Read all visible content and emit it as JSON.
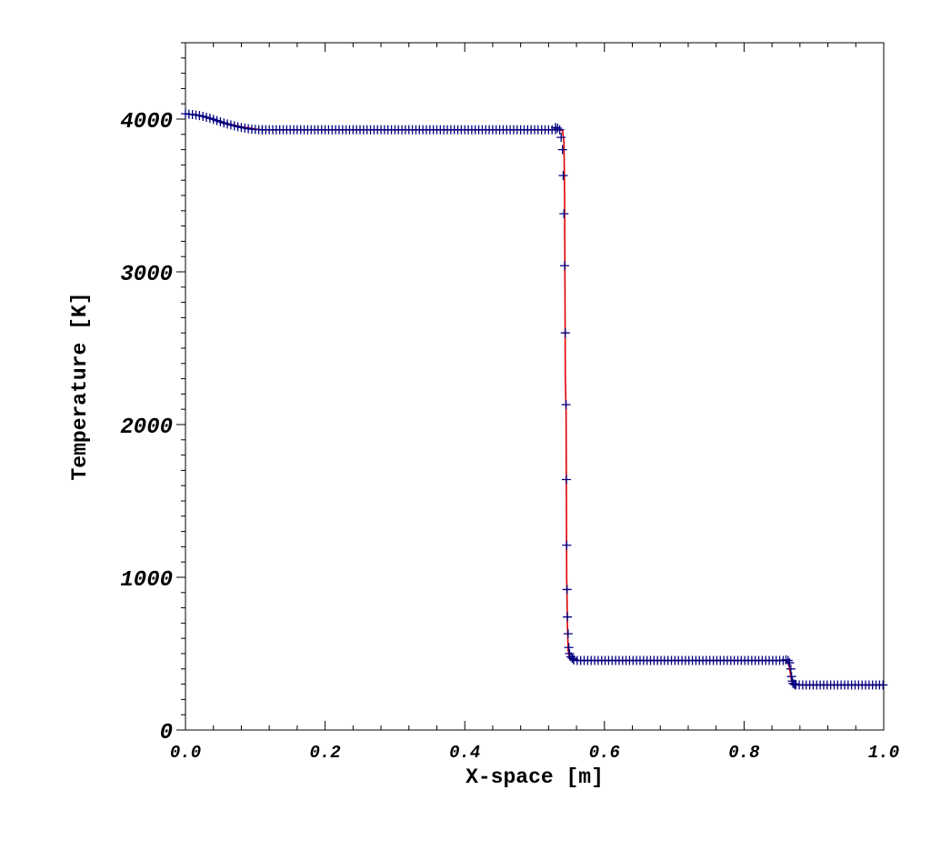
{
  "chart_data": {
    "type": "line",
    "title": "",
    "xlabel": "X-space [m]",
    "ylabel": "Temperature [K]",
    "xlim": [
      0.0,
      1.0
    ],
    "ylim": [
      0,
      4500
    ],
    "x_ticks": [
      0.0,
      0.2,
      0.4,
      0.6,
      0.8,
      1.0
    ],
    "x_tick_labels": [
      "0.0",
      "0.2",
      "0.4",
      "0.6",
      "0.8",
      "1.0"
    ],
    "y_ticks": [
      0,
      1000,
      2000,
      3000,
      4000
    ],
    "y_tick_labels": [
      "0",
      "1000",
      "2000",
      "3000",
      "4000"
    ],
    "grid": false,
    "legend": "none",
    "series": [
      {
        "style": "line",
        "color": "#e00000",
        "x": [
          0.0,
          0.02,
          0.04,
          0.06,
          0.08,
          0.1,
          0.11,
          0.2,
          0.3,
          0.4,
          0.5,
          0.53,
          0.535,
          0.54,
          0.542,
          0.543,
          0.544,
          0.545,
          0.546,
          0.547,
          0.548,
          0.55,
          0.555,
          0.56,
          0.6,
          0.7,
          0.8,
          0.86,
          0.864,
          0.867,
          0.869,
          0.871,
          0.875,
          0.9,
          1.0
        ],
        "y": [
          4035,
          4025,
          4000,
          3970,
          3950,
          3935,
          3930,
          3930,
          3930,
          3930,
          3930,
          3930,
          3930,
          3925,
          3850,
          3500,
          2300,
          2100,
          1000,
          700,
          520,
          470,
          460,
          455,
          455,
          455,
          455,
          455,
          430,
          350,
          300,
          295,
          295,
          295,
          295
        ]
      },
      {
        "style": "markers",
        "marker": "plus",
        "color": "#000080",
        "x": [
          0.0,
          0.005,
          0.01,
          0.015,
          0.02,
          0.025,
          0.03,
          0.035,
          0.04,
          0.045,
          0.05,
          0.055,
          0.06,
          0.065,
          0.07,
          0.075,
          0.08,
          0.085,
          0.09,
          0.095,
          0.1,
          0.105,
          0.11,
          0.53,
          0.533,
          0.536,
          0.538,
          0.54,
          0.541,
          0.542,
          0.543,
          0.544,
          0.545,
          0.5455,
          0.546,
          0.5465,
          0.547,
          0.548,
          0.549,
          0.55,
          0.552,
          0.554,
          0.556,
          0.86,
          0.863,
          0.865,
          0.867,
          0.868,
          0.869,
          0.87,
          0.872,
          0.874
        ],
        "y": [
          4035,
          4032,
          4030,
          4027,
          4023,
          4018,
          4012,
          4005,
          3998,
          3990,
          3982,
          3975,
          3968,
          3962,
          3956,
          3950,
          3945,
          3941,
          3937,
          3934,
          3932,
          3931,
          3930,
          3945,
          3940,
          3930,
          3880,
          3800,
          3630,
          3380,
          3040,
          2600,
          2130,
          1640,
          1210,
          920,
          740,
          630,
          540,
          500,
          480,
          470,
          462,
          460,
          455,
          440,
          400,
          350,
          320,
          305,
          300,
          298
        ]
      }
    ]
  }
}
